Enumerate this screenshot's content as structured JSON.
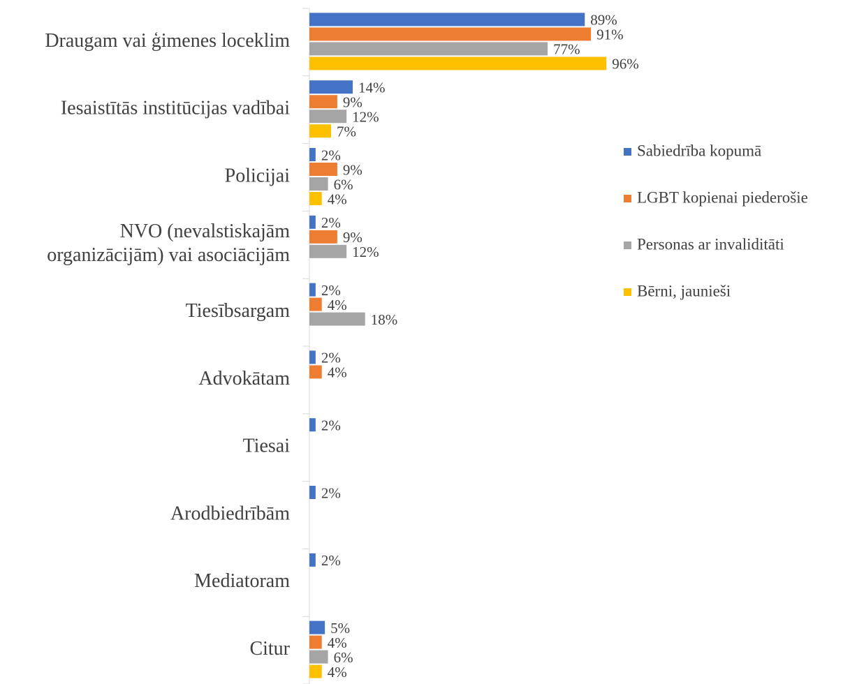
{
  "chart_data": {
    "type": "bar",
    "orientation": "horizontal",
    "categories": [
      "Draugam vai ģimenes loceklim",
      "Iesaistītās institūcijas vadībai",
      "Policijai",
      "NVO (nevalstiskajām\norganizācijām) vai asociācijām",
      "Tiesībsargam",
      "Advokātam",
      "Tiesai",
      "Arodbiedrībām",
      "Mediatoram",
      "Citur"
    ],
    "series": [
      {
        "name": "Sabiedrība kopumā",
        "color": "#4472c4",
        "values": [
          89,
          14,
          2,
          2,
          2,
          2,
          2,
          2,
          2,
          5
        ],
        "value_labels": [
          "89%",
          "14%",
          "2%",
          "2%",
          "2%",
          "2%",
          "2%",
          "2%",
          "2%",
          "5%"
        ]
      },
      {
        "name": "LGBT kopienai piederošie",
        "color": "#ed7d31",
        "values": [
          91,
          9,
          9,
          9,
          4,
          4,
          null,
          null,
          null,
          4
        ],
        "value_labels": [
          "91%",
          "9%",
          "9%",
          "9%",
          "4%",
          "4%",
          null,
          null,
          null,
          "4%"
        ]
      },
      {
        "name": "Personas ar invaliditāti",
        "color": "#a5a5a5",
        "values": [
          77,
          12,
          6,
          12,
          18,
          null,
          null,
          null,
          null,
          6
        ],
        "value_labels": [
          "77%",
          "12%",
          "6%",
          "12%",
          "18%",
          null,
          null,
          null,
          null,
          "6%"
        ]
      },
      {
        "name": "Bērni, jaunieši",
        "color": "#ffc000",
        "values": [
          96,
          7,
          4,
          null,
          null,
          null,
          null,
          null,
          null,
          4
        ],
        "value_labels": [
          "96%",
          "7%",
          "4%",
          null,
          null,
          null,
          null,
          null,
          null,
          "4%"
        ]
      }
    ],
    "xlim": [
      0,
      100
    ],
    "legend": "right"
  }
}
